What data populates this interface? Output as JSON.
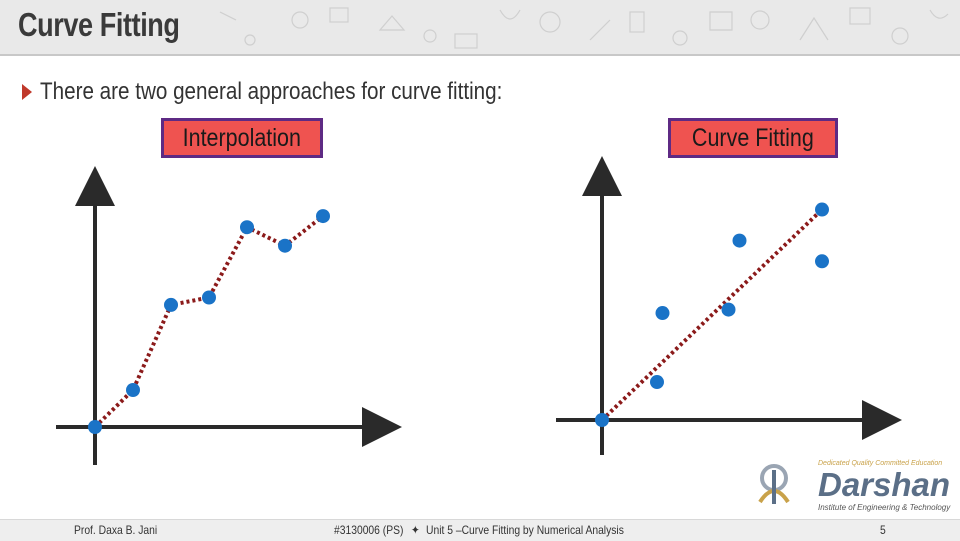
{
  "header": {
    "title": "Curve Fitting"
  },
  "content": {
    "bullet": "There are two general approaches for curve fitting:"
  },
  "diagrams": [
    {
      "label": "Interpolation",
      "points": [
        [
          0,
          0
        ],
        [
          1,
          1
        ],
        [
          2,
          3.3
        ],
        [
          3,
          3.5
        ],
        [
          4,
          5.4
        ],
        [
          5,
          4.9
        ],
        [
          6,
          5.7
        ]
      ]
    },
    {
      "label": "Curve Fitting",
      "points": [
        [
          0,
          0
        ],
        [
          1,
          1.1
        ],
        [
          1.1,
          3.1
        ],
        [
          2.3,
          3.2
        ],
        [
          2.5,
          5.2
        ],
        [
          4,
          4.6
        ],
        [
          4,
          6.1
        ]
      ],
      "fit_line": [
        [
          0,
          0
        ],
        [
          4,
          6.1
        ]
      ]
    }
  ],
  "footer": {
    "author": "Prof. Daxa B. Jani",
    "course": "#3130006 (PS)",
    "separator": "✦",
    "unit": "Unit 5 –Curve Fitting by Numerical Analysis",
    "page": "5"
  },
  "logo": {
    "name": "Darshan",
    "tagline": "Institute of Engineering & Technology",
    "motto": "Dedicated Quality Committed Education"
  },
  "colors": {
    "point": "#1a73c7",
    "connector": "#8b1a1a",
    "label_bg": "#ef5350",
    "label_border": "#5e2a84",
    "bullet": "#c0392b"
  }
}
